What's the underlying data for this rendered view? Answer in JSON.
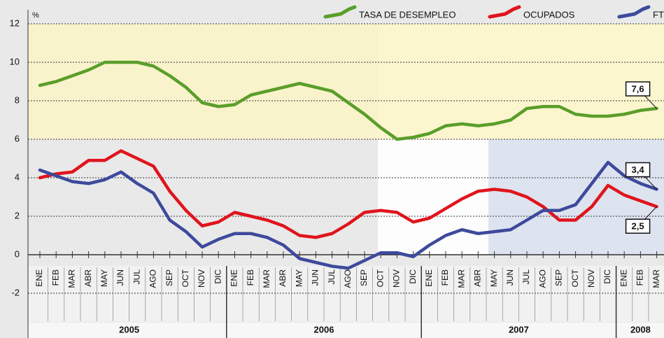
{
  "chart_data": {
    "type": "line",
    "y_unit_label": "%",
    "categories": [
      "ENE",
      "FEB",
      "MAR",
      "ABR",
      "MAY",
      "JUN",
      "JUL",
      "AGO",
      "SEP",
      "OCT",
      "NOV",
      "DIC",
      "ENE",
      "FEB",
      "MAR",
      "ABR",
      "MAY",
      "JUN",
      "JUL",
      "AGO",
      "SEP",
      "OCT",
      "NOV",
      "DIC",
      "ENE",
      "FEB",
      "MAR",
      "ABR",
      "MAY",
      "JUN",
      "JUL",
      "AGO",
      "SEP",
      "OCT",
      "NOV",
      "DIC",
      "ENE",
      "FEB",
      "MAR"
    ],
    "x_groups": [
      {
        "label": "2005",
        "count": 12
      },
      {
        "label": "2006",
        "count": 12
      },
      {
        "label": "2007",
        "count": 12
      },
      {
        "label": "2008",
        "count": 3
      }
    ],
    "series": [
      {
        "name": "TASA DE DESEMPLEO",
        "color": "#5a9e2a",
        "values": [
          8.8,
          9.0,
          9.3,
          9.6,
          10.0,
          10.0,
          10.0,
          9.8,
          9.3,
          8.7,
          7.9,
          7.7,
          7.8,
          8.3,
          8.5,
          8.7,
          8.9,
          8.7,
          8.5,
          7.9,
          7.3,
          6.6,
          6.0,
          6.1,
          6.3,
          6.7,
          6.8,
          6.7,
          6.8,
          7.0,
          7.6,
          7.7,
          7.7,
          7.3,
          7.2,
          7.2,
          7.3,
          7.5,
          7.6
        ],
        "value_labels": [
          null,
          null,
          null,
          null,
          null,
          null,
          null,
          null,
          null,
          null,
          null,
          null,
          null,
          null,
          null,
          null,
          null,
          null,
          null,
          null,
          null,
          null,
          null,
          null,
          null,
          null,
          null,
          null,
          null,
          null,
          null,
          null,
          null,
          null,
          null,
          null,
          null,
          null,
          "7,6"
        ]
      },
      {
        "name": "OCUPADOS",
        "color": "#e0141c",
        "values": [
          4.0,
          4.2,
          4.3,
          4.9,
          4.9,
          5.4,
          5.0,
          4.6,
          3.3,
          2.3,
          1.5,
          1.7,
          2.2,
          2.0,
          1.8,
          1.5,
          1.0,
          0.9,
          1.1,
          1.6,
          2.2,
          2.3,
          2.2,
          1.7,
          1.9,
          2.4,
          2.9,
          3.3,
          3.4,
          3.3,
          3.0,
          2.5,
          1.8,
          1.8,
          2.5,
          3.6,
          3.1,
          2.8,
          2.5
        ],
        "value_labels": [
          null,
          null,
          null,
          null,
          null,
          null,
          null,
          null,
          null,
          null,
          null,
          null,
          null,
          null,
          null,
          null,
          null,
          null,
          null,
          null,
          null,
          null,
          null,
          null,
          null,
          null,
          null,
          null,
          null,
          null,
          null,
          null,
          null,
          null,
          null,
          null,
          null,
          null,
          "2,5"
        ]
      },
      {
        "name": "FT",
        "color": "#3d4a9c",
        "values": [
          4.4,
          4.1,
          3.8,
          3.7,
          3.9,
          4.3,
          3.7,
          3.2,
          1.8,
          1.2,
          0.4,
          0.8,
          1.1,
          1.1,
          0.9,
          0.5,
          -0.2,
          -0.4,
          -0.6,
          -0.7,
          -0.3,
          0.1,
          0.1,
          -0.1,
          0.5,
          1.0,
          1.3,
          1.1,
          1.2,
          1.3,
          1.8,
          2.3,
          2.3,
          2.6,
          3.7,
          4.8,
          4.1,
          3.7,
          3.4
        ],
        "value_labels": [
          null,
          null,
          null,
          null,
          null,
          null,
          null,
          null,
          null,
          null,
          null,
          null,
          null,
          null,
          null,
          null,
          null,
          null,
          null,
          null,
          null,
          null,
          null,
          null,
          null,
          null,
          null,
          null,
          null,
          null,
          null,
          null,
          null,
          null,
          null,
          null,
          null,
          null,
          "3,4"
        ]
      }
    ],
    "ylim": [
      -2,
      12
    ],
    "yticks": [
      -2,
      0,
      2,
      4,
      6,
      8,
      10,
      12
    ],
    "grid": true,
    "bands": [
      {
        "ylim": [
          6,
          12
        ],
        "color": "#fbf5c6"
      }
    ]
  }
}
